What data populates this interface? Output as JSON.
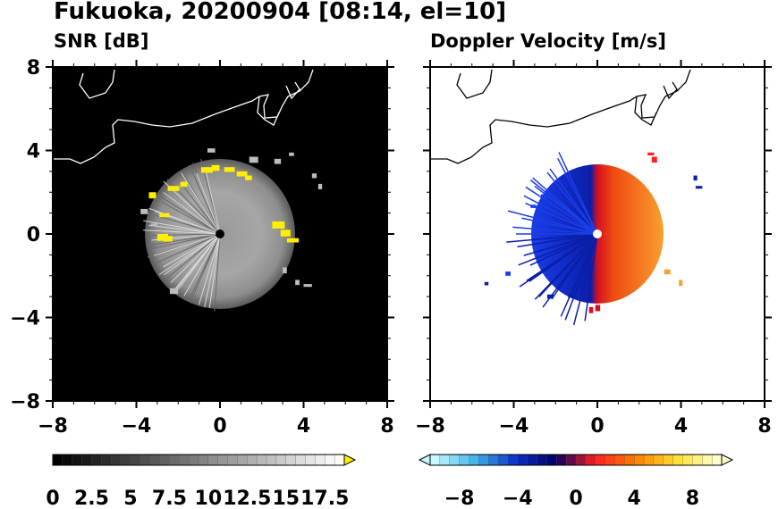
{
  "header": {
    "title": "Fukuoka, 20200904 [08:14, el=10]"
  },
  "panels": {
    "left_title": "SNR [dB]",
    "right_title": "Doppler Velocity [m/s]"
  },
  "chart_data": [
    {
      "type": "heatmap",
      "title": "SNR [dB]",
      "xlim": [
        -8,
        8
      ],
      "ylim": [
        -8,
        8
      ],
      "xticks": [
        "−8",
        "−4",
        "0",
        "4",
        "8"
      ],
      "yticks": [
        "8",
        "4",
        "0",
        "−4",
        "−8"
      ],
      "description_values": {
        "echo_radius_km": 3.6,
        "typical_snr_db": 9,
        "edge_snr_db": 18
      },
      "colorbar": {
        "ticks": [
          "0",
          "2.5",
          "5",
          "7.5",
          "10",
          "12.5",
          "15",
          "17.5"
        ],
        "min": 0,
        "max": 18.75,
        "levels": 30,
        "extend": "max",
        "colors": [
          "#000000",
          "#ffffff",
          "#ffee00"
        ]
      }
    },
    {
      "type": "heatmap",
      "title": "Doppler Velocity [m/s]",
      "xlim": [
        -8,
        8
      ],
      "ylim": [
        -8,
        8
      ],
      "xticks": [
        "−8",
        "−4",
        "0",
        "4",
        "8"
      ],
      "yticks": [
        "8",
        "4",
        "0",
        "−4",
        "−8"
      ],
      "description_values": {
        "echo_radius_km": 3.8,
        "west_velocity_ms": -6,
        "east_velocity_ms": 6
      },
      "colorbar": {
        "ticks": [
          "−8",
          "−4",
          "0",
          "4",
          "8"
        ],
        "min": -10,
        "max": 10,
        "levels": 30,
        "extend": "both",
        "colors": [
          "#c8f7ff",
          "#3fb4e8",
          "#0b2ec8",
          "#000060",
          "#ff2020",
          "#ff8000",
          "#ffe030",
          "#ffffcc"
        ]
      }
    }
  ]
}
